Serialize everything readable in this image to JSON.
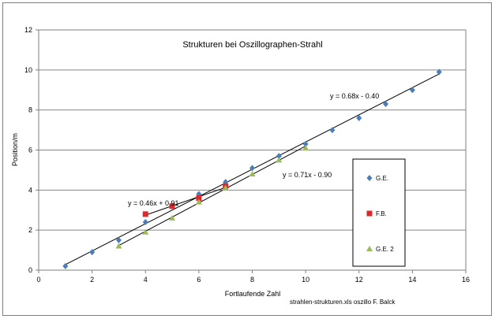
{
  "chart_data": {
    "type": "scatter",
    "title": "Strukturen bei Oszillographen-Strahl",
    "xlabel": "Fortlaufende Zahl",
    "ylabel": "Position/m",
    "xlim": [
      0,
      16
    ],
    "ylim": [
      0,
      12
    ],
    "xticks": [
      0,
      2,
      4,
      6,
      8,
      10,
      12,
      14,
      16
    ],
    "yticks": [
      0,
      2,
      4,
      6,
      8,
      10,
      12
    ],
    "grid": "horizontal",
    "legend_position": "right",
    "series": [
      {
        "name": "G.E.",
        "marker": "diamond",
        "color": "#4a7ebb",
        "x": [
          1,
          2,
          3,
          4,
          5,
          6,
          7,
          8,
          9,
          10,
          11,
          12,
          13,
          14,
          15
        ],
        "y": [
          0.2,
          0.9,
          1.5,
          2.4,
          3.2,
          3.8,
          4.4,
          5.1,
          5.7,
          6.3,
          7.0,
          7.6,
          8.3,
          9.0,
          9.9
        ]
      },
      {
        "name": "F.B.",
        "marker": "square",
        "color": "#d92b2b",
        "x": [
          4,
          5,
          6,
          7
        ],
        "y": [
          2.8,
          3.2,
          3.6,
          4.2
        ]
      },
      {
        "name": "G.E. 2",
        "marker": "triangle",
        "color": "#9bbb59",
        "x": [
          3,
          4,
          5,
          6,
          7,
          8,
          9,
          10
        ],
        "y": [
          1.2,
          1.9,
          2.6,
          3.4,
          4.1,
          4.8,
          5.5,
          6.1
        ]
      }
    ],
    "trendlines": [
      {
        "label": "y = 0.68x - 0.40",
        "slope": 0.68,
        "intercept": -0.4,
        "x_range": [
          1,
          15
        ]
      },
      {
        "label": "y = 0.46x + 0.91",
        "slope": 0.46,
        "intercept": 0.91,
        "x_range": [
          4,
          7
        ]
      },
      {
        "label": "y = 0.71x - 0.90",
        "slope": 0.71,
        "intercept": -0.9,
        "x_range": [
          3,
          10
        ]
      }
    ]
  },
  "footnote": "strahlen-strukturen.xls oszillo     F. Balck"
}
